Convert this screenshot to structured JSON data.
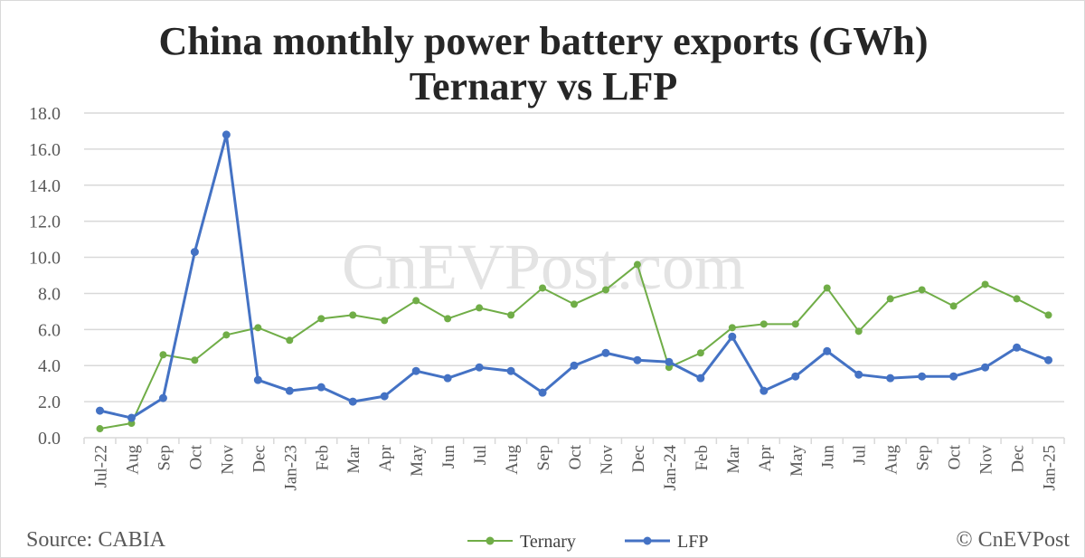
{
  "chart_data": {
    "type": "line",
    "title": "China monthly power battery exports (GWh)",
    "subtitle": "Ternary vs LFP",
    "categories": [
      "Jul-22",
      "Aug",
      "Sep",
      "Oct",
      "Nov",
      "Dec",
      "Jan-23",
      "Feb",
      "Mar",
      "Apr",
      "May",
      "Jun",
      "Jul",
      "Aug",
      "Sep",
      "Oct",
      "Nov",
      "Dec",
      "Jan-24",
      "Feb",
      "Mar",
      "Apr",
      "May",
      "Jun",
      "Jul",
      "Aug",
      "Sep",
      "Oct",
      "Nov",
      "Dec",
      "Jan-25"
    ],
    "series": [
      {
        "name": "Ternary",
        "color": "#70ad47",
        "values": [
          0.5,
          0.8,
          4.6,
          4.3,
          5.7,
          6.1,
          5.4,
          6.6,
          6.8,
          6.5,
          7.6,
          6.6,
          7.2,
          6.8,
          8.3,
          7.4,
          8.2,
          9.6,
          3.9,
          4.7,
          6.1,
          6.3,
          6.3,
          8.3,
          5.9,
          7.7,
          8.2,
          7.3,
          8.5,
          7.7,
          6.8
        ]
      },
      {
        "name": "LFP",
        "color": "#4472c4",
        "values": [
          1.5,
          1.1,
          2.2,
          10.3,
          16.8,
          3.2,
          2.6,
          2.8,
          2.0,
          2.3,
          3.7,
          3.3,
          3.9,
          3.7,
          2.5,
          4.0,
          4.7,
          4.3,
          4.2,
          3.3,
          5.6,
          2.6,
          3.4,
          4.8,
          3.5,
          3.3,
          3.4,
          3.4,
          3.9,
          5.0,
          4.3
        ]
      }
    ],
    "yticks": [
      "0.0",
      "2.0",
      "4.0",
      "6.0",
      "8.0",
      "10.0",
      "12.0",
      "14.0",
      "16.0",
      "18.0"
    ],
    "ylim": [
      0,
      18
    ],
    "grid": true,
    "legend": "bottom"
  },
  "watermark": "CnEVPost.com",
  "source": "Source: CABIA",
  "copyright": "© CnEVPost"
}
